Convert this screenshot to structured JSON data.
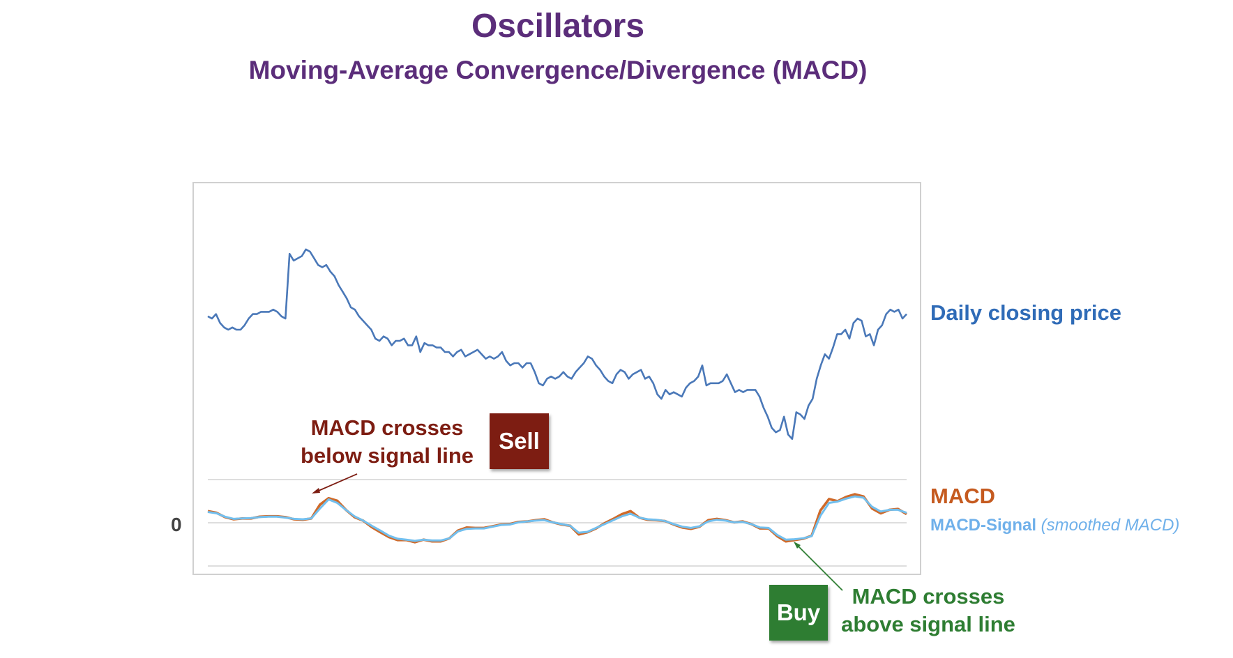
{
  "title": "Oscillators",
  "subtitle": "Moving-Average Convergence/Divergence (MACD)",
  "labels": {
    "price": "Daily closing price",
    "macd": "MACD",
    "signal": "MACD-Signal",
    "signal_note": "(smoothed MACD)",
    "zero": "0"
  },
  "annotations": {
    "sell_text_line1": "MACD crosses",
    "sell_text_line2": "below signal line",
    "sell_box": "Sell",
    "buy_text_line1": "MACD crosses",
    "buy_text_line2": "above signal line",
    "buy_box": "Buy"
  },
  "colors": {
    "title": "#5b2d7a",
    "price": "#4a78b8",
    "macd": "#cf6a2a",
    "signal": "#72bfee",
    "sell": "#7d1d12",
    "buy": "#2e7d32",
    "grid": "#d4d4d4"
  },
  "chart_data": [
    {
      "type": "line",
      "series": [
        {
          "name": "Daily closing price",
          "values": [
            66,
            65,
            67,
            63,
            61,
            60,
            61,
            60,
            60,
            62,
            65,
            67,
            67,
            68,
            68,
            68,
            69,
            68,
            66,
            65,
            94,
            91,
            92,
            93,
            96,
            95,
            92,
            89,
            88,
            89,
            86,
            84,
            80,
            77,
            74,
            70,
            69,
            66,
            64,
            62,
            60,
            56,
            55,
            57,
            56,
            53,
            55,
            55,
            56,
            53,
            53,
            57,
            50,
            54,
            53,
            53,
            52,
            52,
            50,
            50,
            48,
            50,
            51,
            48,
            49,
            50,
            51,
            49,
            47,
            48,
            47,
            48,
            50,
            46,
            44,
            45,
            45,
            43,
            45,
            45,
            41,
            36,
            35,
            38,
            39,
            38,
            39,
            41,
            39,
            38,
            41,
            43,
            45,
            48,
            47,
            44,
            42,
            39,
            37,
            36,
            40,
            42,
            41,
            38,
            40,
            41,
            42,
            38,
            39,
            36,
            31,
            29,
            33,
            31,
            32,
            31,
            30,
            34,
            36,
            37,
            39,
            44,
            35,
            36,
            36,
            36,
            37,
            40,
            36,
            32,
            33,
            32,
            33,
            33,
            33,
            30,
            25,
            21,
            16,
            14,
            15,
            21,
            13,
            11,
            23,
            22,
            20,
            26,
            29,
            38,
            44,
            49,
            47,
            52,
            58,
            58,
            60,
            56,
            63,
            65,
            64,
            57,
            58,
            53,
            60,
            62,
            67,
            69,
            68,
            69,
            65,
            67
          ],
          "ylim": [
            0,
            100
          ]
        }
      ]
    },
    {
      "type": "line",
      "series": [
        {
          "name": "MACD",
          "values": [
            2.7,
            2.3,
            1.3,
            0.8,
            1.0,
            1.0,
            1.4,
            1.5,
            1.5,
            1.3,
            0.8,
            0.7,
            1.0,
            4.2,
            5.7,
            5.1,
            3.0,
            1.3,
            0.5,
            -1.0,
            -2.2,
            -3.3,
            -4.0,
            -4.0,
            -4.5,
            -3.9,
            -4.3,
            -4.3,
            -3.6,
            -1.8,
            -1.1,
            -1.2,
            -1.2,
            -0.8,
            -0.4,
            -0.3,
            0.2,
            0.3,
            0.6,
            0.8,
            0.1,
            -0.4,
            -0.7,
            -2.7,
            -2.2,
            -1.3,
            -0.1,
            0.9,
            2.0,
            2.7,
            1.2,
            0.7,
            0.6,
            0.4,
            -0.4,
            -1.1,
            -1.4,
            -0.9,
            0.6,
            0.9,
            0.6,
            0.1,
            0.3,
            -0.3,
            -1.3,
            -1.3,
            -3.1,
            -4.3,
            -4.0,
            -3.7,
            -3.0,
            2.8,
            5.5,
            5.0,
            6.0,
            6.6,
            6.1,
            3.3,
            2.2,
            3.0,
            3.2,
            2.0
          ],
          "ylim": [
            -10,
            10
          ]
        },
        {
          "name": "MACD-Signal",
          "values": [
            2.5,
            2.2,
            1.4,
            0.9,
            1.0,
            1.1,
            1.3,
            1.4,
            1.4,
            1.2,
            0.9,
            0.8,
            1.0,
            3.3,
            5.4,
            4.6,
            3.0,
            1.5,
            0.5,
            -0.7,
            -1.8,
            -3.0,
            -3.7,
            -3.9,
            -4.2,
            -3.9,
            -4.1,
            -4.1,
            -3.6,
            -2.0,
            -1.4,
            -1.3,
            -1.3,
            -0.9,
            -0.5,
            -0.4,
            0.1,
            0.3,
            0.5,
            0.6,
            0.1,
            -0.3,
            -0.7,
            -2.3,
            -2.1,
            -1.2,
            -0.3,
            0.6,
            1.5,
            2.1,
            1.2,
            0.8,
            0.7,
            0.4,
            -0.3,
            -0.9,
            -1.2,
            -0.8,
            0.3,
            0.7,
            0.5,
            0.1,
            0.2,
            -0.3,
            -1.1,
            -1.2,
            -2.8,
            -3.9,
            -3.8,
            -3.6,
            -3.1,
            1.6,
            4.6,
            4.9,
            5.6,
            6.1,
            5.8,
            3.7,
            2.6,
            3.0,
            3.0,
            2.3
          ],
          "ylim": [
            -10,
            10
          ]
        }
      ]
    }
  ]
}
